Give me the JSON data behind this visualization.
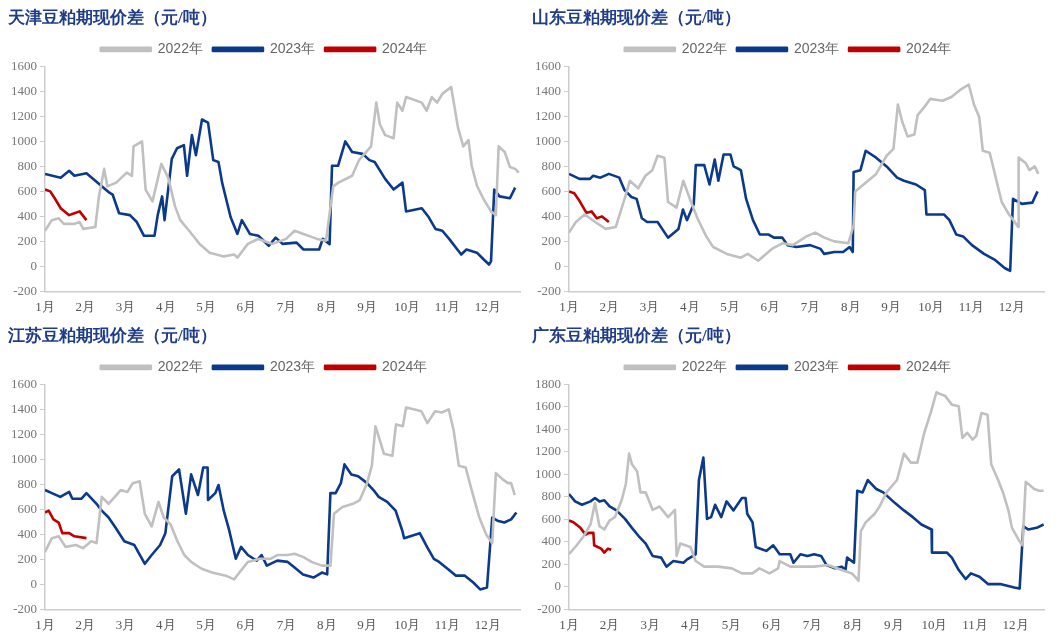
{
  "chart_data": [
    {
      "type": "line",
      "title": "天津豆粕期现价差（元/吨）",
      "legend": "top",
      "xlim": [
        1,
        12.8
      ],
      "xticks": [
        {
          "value": 1,
          "label": "1月"
        },
        {
          "value": 2,
          "label": "2月"
        },
        {
          "value": 3,
          "label": "3月"
        },
        {
          "value": 4,
          "label": "4月"
        },
        {
          "value": 5,
          "label": "5月"
        },
        {
          "value": 6,
          "label": "6月"
        },
        {
          "value": 7,
          "label": "7月"
        },
        {
          "value": 8,
          "label": "8月"
        },
        {
          "value": 9,
          "label": "9月"
        },
        {
          "value": 10,
          "label": "10月"
        },
        {
          "value": 11,
          "label": "11月"
        },
        {
          "value": 12,
          "label": "12月"
        }
      ],
      "ylim": [
        -200,
        1600
      ],
      "yticks": [
        -200,
        0,
        200,
        400,
        600,
        800,
        1000,
        1200,
        1400,
        1600
      ],
      "series": [
        {
          "name": "2022年",
          "color": "#c0c0c0",
          "x": [
            1.0,
            1.17,
            1.34,
            1.47,
            1.73,
            1.86,
            1.95,
            2.25,
            2.34,
            2.47,
            2.55,
            2.77,
            3.03,
            3.16,
            3.2,
            3.41,
            3.5,
            3.67,
            3.89,
            4.06,
            4.23,
            4.36,
            4.58,
            4.84,
            5.09,
            5.44,
            5.7,
            5.78,
            6.04,
            6.3,
            6.65,
            6.99,
            7.2,
            7.42,
            7.76,
            7.98,
            8.16,
            8.29,
            8.63,
            8.8,
            9.1,
            9.23,
            9.32,
            9.45,
            9.66,
            9.75,
            9.88,
            9.97,
            10.36,
            10.48,
            10.61,
            10.74,
            10.87,
            11.09,
            11.26,
            11.39,
            11.52,
            11.6,
            11.73,
            11.9,
            12.08,
            12.2,
            12.27,
            12.42,
            12.55,
            12.68,
            12.77
          ],
          "values": [
            285,
            370,
            385,
            340,
            340,
            355,
            300,
            315,
            560,
            780,
            640,
            670,
            750,
            725,
            960,
            1000,
            615,
            520,
            820,
            710,
            480,
            370,
            285,
            180,
            110,
            80,
            95,
            70,
            180,
            220,
            180,
            220,
            285,
            260,
            220,
            205,
            640,
            670,
            725,
            850,
            960,
            1310,
            1135,
            1050,
            1025,
            1310,
            1245,
            1355,
            1310,
            1245,
            1355,
            1310,
            1380,
            1435,
            1110,
            960,
            1010,
            805,
            645,
            535,
            440,
            410,
            960,
            915,
            795,
            780,
            750
          ]
        },
        {
          "name": "2023年",
          "color": "#0b3a8a",
          "x": [
            1.0,
            1.39,
            1.6,
            1.73,
            2.03,
            2.25,
            2.6,
            2.68,
            2.84,
            3.11,
            3.28,
            3.46,
            3.72,
            3.8,
            3.91,
            3.97,
            4.15,
            4.28,
            4.45,
            4.53,
            4.65,
            4.75,
            4.9,
            5.05,
            5.18,
            5.31,
            5.4,
            5.61,
            5.78,
            5.89,
            6.09,
            6.3,
            6.56,
            6.73,
            6.9,
            7.25,
            7.42,
            7.81,
            7.9,
            8.07,
            8.13,
            8.28,
            8.46,
            8.63,
            8.89,
            9.06,
            9.19,
            9.45,
            9.66,
            9.88,
            9.97,
            10.36,
            10.53,
            10.7,
            10.87,
            11.04,
            11.34,
            11.47,
            11.73,
            11.9,
            12.03,
            12.08,
            12.16,
            12.29,
            12.55,
            12.68
          ],
          "values": [
            740,
            710,
            765,
            725,
            745,
            685,
            590,
            575,
            425,
            410,
            355,
            245,
            245,
            410,
            560,
            370,
            860,
            945,
            970,
            725,
            1050,
            890,
            1175,
            1150,
            850,
            835,
            670,
            395,
            260,
            370,
            260,
            245,
            165,
            230,
            180,
            190,
            135,
            135,
            220,
            178,
            805,
            805,
            1000,
            915,
            900,
            850,
            835,
            700,
            615,
            670,
            440,
            465,
            395,
            300,
            285,
            220,
            95,
            135,
            110,
            55,
            15,
            40,
            615,
            560,
            545,
            630
          ]
        },
        {
          "name": "2024年",
          "color": "#c00000",
          "x": [
            1.0,
            1.13,
            1.26,
            1.39,
            1.6,
            1.73,
            1.86,
            2.03
          ],
          "values": [
            615,
            600,
            535,
            465,
            410,
            425,
            440,
            370
          ]
        }
      ]
    },
    {
      "type": "line",
      "title": "山东豆粕期现价差（元/吨）",
      "legend": "top",
      "xlim": [
        1,
        12.8
      ],
      "xticks": [
        {
          "value": 1,
          "label": "1月"
        },
        {
          "value": 2,
          "label": "2月"
        },
        {
          "value": 3,
          "label": "3月"
        },
        {
          "value": 4,
          "label": "4月"
        },
        {
          "value": 5,
          "label": "5月"
        },
        {
          "value": 6,
          "label": "6月"
        },
        {
          "value": 7,
          "label": "7月"
        },
        {
          "value": 8,
          "label": "8月"
        },
        {
          "value": 9,
          "label": "9月"
        },
        {
          "value": 10,
          "label": "10月"
        },
        {
          "value": 11,
          "label": "11月"
        },
        {
          "value": 12,
          "label": "12月"
        }
      ],
      "ylim": [
        -200,
        1600
      ],
      "yticks": [
        -200,
        0,
        200,
        400,
        600,
        800,
        1000,
        1200,
        1400,
        1600
      ],
      "series": [
        {
          "name": "2022年",
          "color": "#c0c0c0",
          "x": [
            1.0,
            1.17,
            1.39,
            1.65,
            1.91,
            2.16,
            2.38,
            2.51,
            2.72,
            2.9,
            3.07,
            3.2,
            3.37,
            3.46,
            3.67,
            3.84,
            4.02,
            4.19,
            4.41,
            4.58,
            4.92,
            5.27,
            5.44,
            5.7,
            6.04,
            6.3,
            6.56,
            6.9,
            7.12,
            7.34,
            7.59,
            7.94,
            8.07,
            8.11,
            8.37,
            8.63,
            8.89,
            9.06,
            9.17,
            9.28,
            9.41,
            9.58,
            9.66,
            9.84,
            9.97,
            10.28,
            10.5,
            10.71,
            10.93,
            11.06,
            11.19,
            11.28,
            11.45,
            11.62,
            11.75,
            11.93,
            12.04,
            12.16,
            12.17,
            12.35,
            12.44,
            12.57,
            12.66
          ],
          "values": [
            270,
            355,
            415,
            355,
            300,
            315,
            540,
            685,
            625,
            725,
            770,
            885,
            870,
            515,
            470,
            685,
            525,
            385,
            240,
            155,
            100,
            70,
            100,
            45,
            140,
            185,
            170,
            240,
            270,
            230,
            200,
            185,
            330,
            600,
            670,
            740,
            885,
            940,
            1295,
            1155,
            1040,
            1055,
            1210,
            1280,
            1340,
            1325,
            1355,
            1410,
            1455,
            1295,
            1195,
            925,
            910,
            685,
            515,
            415,
            370,
            315,
            870,
            825,
            770,
            800,
            740
          ]
        },
        {
          "name": "2023年",
          "color": "#0b3a8a",
          "x": [
            1.0,
            1.26,
            1.52,
            1.6,
            1.78,
            1.99,
            2.25,
            2.38,
            2.55,
            2.68,
            2.81,
            2.94,
            3.2,
            3.46,
            3.72,
            3.83,
            3.93,
            4.1,
            4.15,
            4.36,
            4.49,
            4.62,
            4.71,
            4.84,
            5.01,
            5.09,
            5.27,
            5.4,
            5.57,
            5.74,
            5.96,
            6.09,
            6.3,
            6.43,
            6.65,
            6.99,
            7.25,
            7.34,
            7.59,
            7.81,
            7.97,
            8.05,
            8.07,
            8.24,
            8.37,
            8.63,
            8.89,
            9.15,
            9.32,
            9.62,
            9.84,
            9.88,
            10.32,
            10.45,
            10.62,
            10.79,
            11.01,
            11.31,
            11.57,
            11.83,
            11.96,
            12.03,
            12.25,
            12.51,
            12.64
          ],
          "values": [
            740,
            700,
            700,
            725,
            710,
            740,
            710,
            610,
            555,
            540,
            385,
            355,
            355,
            230,
            300,
            455,
            370,
            500,
            810,
            810,
            655,
            855,
            685,
            895,
            895,
            800,
            770,
            540,
            370,
            255,
            255,
            230,
            230,
            170,
            155,
            170,
            140,
            100,
            115,
            115,
            155,
            115,
            755,
            770,
            925,
            870,
            800,
            710,
            685,
            655,
            610,
            415,
            415,
            370,
            255,
            240,
            170,
            100,
            55,
            -15,
            -35,
            540,
            500,
            510,
            600
          ]
        },
        {
          "name": "2024年",
          "color": "#c00000",
          "x": [
            1.0,
            1.13,
            1.26,
            1.43,
            1.56,
            1.69,
            1.82,
            1.99
          ],
          "values": [
            600,
            585,
            525,
            430,
            440,
            385,
            400,
            355
          ]
        }
      ]
    },
    {
      "type": "line",
      "title": "江苏豆粕期现价差（元/吨）",
      "legend": "top",
      "xlim": [
        1,
        12.8
      ],
      "xticks": [
        {
          "value": 1,
          "label": "1月"
        },
        {
          "value": 2,
          "label": "2月"
        },
        {
          "value": 3,
          "label": "3月"
        },
        {
          "value": 4,
          "label": "4月"
        },
        {
          "value": 5,
          "label": "5月"
        },
        {
          "value": 6,
          "label": "6月"
        },
        {
          "value": 7,
          "label": "7月"
        },
        {
          "value": 8,
          "label": "8月"
        },
        {
          "value": 9,
          "label": "9月"
        },
        {
          "value": 10,
          "label": "10月"
        },
        {
          "value": 11,
          "label": "11月"
        },
        {
          "value": 12,
          "label": "12月"
        }
      ],
      "ylim": [
        -200,
        1600
      ],
      "yticks": [
        -200,
        0,
        200,
        400,
        600,
        800,
        1000,
        1200,
        1400,
        1600
      ],
      "series": [
        {
          "name": "2022年",
          "color": "#c0c0c0",
          "x": [
            1.0,
            1.17,
            1.34,
            1.51,
            1.77,
            1.94,
            2.15,
            2.28,
            2.41,
            2.58,
            2.88,
            3.05,
            3.18,
            3.35,
            3.48,
            3.65,
            3.82,
            3.95,
            4.12,
            4.29,
            4.46,
            4.63,
            4.89,
            5.15,
            5.49,
            5.7,
            5.83,
            6.04,
            6.34,
            6.6,
            6.77,
            7.03,
            7.2,
            7.41,
            7.62,
            7.88,
            8.09,
            8.18,
            8.39,
            8.65,
            8.82,
            9.0,
            9.12,
            9.21,
            9.33,
            9.42,
            9.63,
            9.72,
            9.89,
            9.97,
            10.18,
            10.35,
            10.5,
            10.69,
            10.86,
            11.03,
            11.15,
            11.28,
            11.45,
            11.62,
            11.79,
            11.96,
            12.11,
            12.2,
            12.37,
            12.5,
            12.58,
            12.67
          ],
          "values": [
            260,
            370,
            385,
            300,
            315,
            290,
            345,
            330,
            700,
            645,
            755,
            740,
            810,
            825,
            565,
            465,
            660,
            535,
            480,
            345,
            235,
            180,
            125,
            95,
            70,
            40,
            95,
            180,
            205,
            205,
            235,
            235,
            245,
            220,
            180,
            150,
            150,
            565,
            620,
            645,
            675,
            810,
            950,
            1265,
            1140,
            1045,
            1030,
            1280,
            1265,
            1415,
            1400,
            1385,
            1290,
            1385,
            1375,
            1400,
            1235,
            950,
            935,
            730,
            535,
            400,
            330,
            890,
            840,
            810,
            810,
            715
          ]
        },
        {
          "name": "2023年",
          "color": "#0b3a8a",
          "x": [
            1.0,
            1.17,
            1.38,
            1.6,
            1.68,
            1.9,
            2.03,
            2.28,
            2.41,
            2.58,
            2.75,
            2.97,
            3.22,
            3.48,
            3.65,
            3.86,
            3.99,
            4.16,
            4.33,
            4.5,
            4.63,
            4.8,
            4.93,
            5.04,
            5.05,
            5.23,
            5.31,
            5.44,
            5.57,
            5.74,
            5.87,
            6.04,
            6.26,
            6.38,
            6.51,
            6.77,
            7.03,
            7.2,
            7.41,
            7.67,
            7.88,
            8.01,
            8.09,
            8.22,
            8.35,
            8.44,
            8.61,
            8.78,
            9.0,
            9.16,
            9.29,
            9.5,
            9.71,
            9.88,
            9.92,
            10.31,
            10.49,
            10.66,
            10.79,
            11.0,
            11.21,
            11.43,
            11.64,
            11.81,
            11.98,
            12.11,
            12.24,
            12.41,
            12.58,
            12.71
          ],
          "values": [
            755,
            730,
            700,
            740,
            685,
            685,
            730,
            645,
            590,
            535,
            455,
            345,
            315,
            165,
            235,
            315,
            410,
            865,
            920,
            565,
            880,
            715,
            935,
            935,
            675,
            730,
            795,
            590,
            440,
            205,
            300,
            235,
            190,
            235,
            150,
            190,
            180,
            135,
            80,
            55,
            95,
            80,
            730,
            730,
            810,
            960,
            880,
            865,
            810,
            755,
            700,
            660,
            590,
            425,
            370,
            410,
            300,
            205,
            180,
            125,
            70,
            70,
            15,
            -40,
            -25,
            535,
            510,
            495,
            520,
            575
          ]
        },
        {
          "name": "2024年",
          "color": "#c00000",
          "x": [
            1.0,
            1.09,
            1.21,
            1.34,
            1.43,
            1.6,
            1.73,
            2.03
          ],
          "values": [
            575,
            590,
            520,
            495,
            410,
            410,
            385,
            370
          ]
        }
      ]
    },
    {
      "type": "line",
      "title": "广东豆粕期现价差（元/吨）",
      "legend": "top",
      "xlim": [
        1,
        12.7
      ],
      "xticks": [
        {
          "value": 1,
          "label": "1月"
        },
        {
          "value": 2,
          "label": "2月"
        },
        {
          "value": 3,
          "label": "3月"
        },
        {
          "value": 4,
          "label": "4月"
        },
        {
          "value": 5,
          "label": "5月"
        },
        {
          "value": 6,
          "label": "6月"
        },
        {
          "value": 7,
          "label": "7月"
        },
        {
          "value": 8,
          "label": "8月"
        },
        {
          "value": 9,
          "label": "9月"
        },
        {
          "value": 10,
          "label": "10月"
        },
        {
          "value": 11,
          "label": "11月"
        },
        {
          "value": 12,
          "label": "12月"
        }
      ],
      "ylim": [
        -200,
        1800
      ],
      "yticks": [
        -200,
        0,
        200,
        400,
        600,
        800,
        1000,
        1200,
        1400,
        1600,
        1800
      ],
      "series": [
        {
          "name": "2022年",
          "color": "#c0c0c0",
          "x": [
            1.0,
            1.19,
            1.36,
            1.53,
            1.64,
            1.75,
            1.87,
            2.0,
            2.13,
            2.3,
            2.4,
            2.48,
            2.55,
            2.68,
            2.76,
            2.89,
            3.06,
            3.23,
            3.44,
            3.61,
            3.65,
            3.74,
            3.99,
            4.12,
            4.33,
            4.67,
            5.01,
            5.26,
            5.52,
            5.69,
            5.94,
            6.15,
            6.19,
            6.45,
            6.79,
            7.04,
            7.38,
            7.72,
            7.97,
            8.13,
            8.19,
            8.31,
            8.53,
            8.65,
            8.82,
            9.08,
            9.25,
            9.42,
            9.58,
            9.75,
            9.92,
            10.05,
            10.14,
            10.26,
            10.43,
            10.6,
            10.69,
            10.81,
            10.94,
            11.03,
            11.16,
            11.31,
            11.4,
            11.57,
            11.69,
            11.82,
            11.91,
            12.08,
            12.17,
            12.25,
            12.46,
            12.58,
            12.69
          ],
          "values": [
            290,
            370,
            450,
            555,
            745,
            540,
            510,
            590,
            620,
            775,
            915,
            1185,
            1090,
            1025,
            840,
            840,
            685,
            715,
            620,
            685,
            275,
            385,
            355,
            230,
            180,
            180,
            165,
            120,
            120,
            165,
            120,
            165,
            230,
            180,
            180,
            180,
            195,
            150,
            120,
            55,
            495,
            575,
            650,
            715,
            840,
            950,
            1185,
            1105,
            1105,
            1370,
            1560,
            1730,
            1715,
            1700,
            1620,
            1605,
            1325,
            1370,
            1310,
            1340,
            1545,
            1530,
            1090,
            950,
            840,
            685,
            525,
            415,
            370,
            935,
            870,
            855,
            855
          ]
        },
        {
          "name": "2023年",
          "color": "#0b3a8a",
          "x": [
            1.0,
            1.15,
            1.32,
            1.53,
            1.64,
            1.75,
            1.87,
            2.0,
            2.17,
            2.38,
            2.55,
            2.72,
            2.89,
            3.06,
            3.27,
            3.4,
            3.57,
            3.82,
            3.91,
            4.12,
            4.2,
            4.31,
            4.4,
            4.5,
            4.6,
            4.75,
            4.88,
            5.05,
            5.26,
            5.35,
            5.39,
            5.52,
            5.6,
            5.86,
            6.03,
            6.19,
            6.45,
            6.53,
            6.7,
            6.87,
            7.04,
            7.21,
            7.34,
            7.55,
            7.72,
            7.81,
            7.85,
            8.02,
            8.1,
            8.23,
            8.36,
            8.57,
            8.74,
            9.03,
            9.25,
            9.47,
            9.68,
            9.93,
            9.94,
            10.31,
            10.43,
            10.6,
            10.77,
            10.9,
            11.11,
            11.32,
            11.62,
            11.97,
            12.1,
            12.19,
            12.31,
            12.52,
            12.69
          ],
          "values": [
            825,
            760,
            730,
            760,
            790,
            760,
            770,
            715,
            680,
            605,
            525,
            450,
            385,
            275,
            260,
            180,
            230,
            215,
            245,
            290,
            950,
            1150,
            605,
            620,
            730,
            620,
            760,
            680,
            790,
            790,
            650,
            575,
            355,
            320,
            370,
            290,
            290,
            215,
            290,
            275,
            290,
            275,
            195,
            165,
            180,
            150,
            260,
            215,
            855,
            840,
            950,
            870,
            840,
            745,
            680,
            620,
            555,
            510,
            305,
            305,
            260,
            150,
            70,
            120,
            90,
            25,
            25,
            -5,
            -15,
            540,
            510,
            525,
            555
          ]
        },
        {
          "name": "2024年",
          "color": "#c00000",
          "x": [
            1.0,
            1.11,
            1.28,
            1.41,
            1.49,
            1.6,
            1.62,
            1.79,
            1.87,
            1.96,
            2.04
          ],
          "values": [
            590,
            575,
            525,
            465,
            480,
            480,
            370,
            340,
            305,
            340,
            330
          ]
        }
      ]
    }
  ]
}
